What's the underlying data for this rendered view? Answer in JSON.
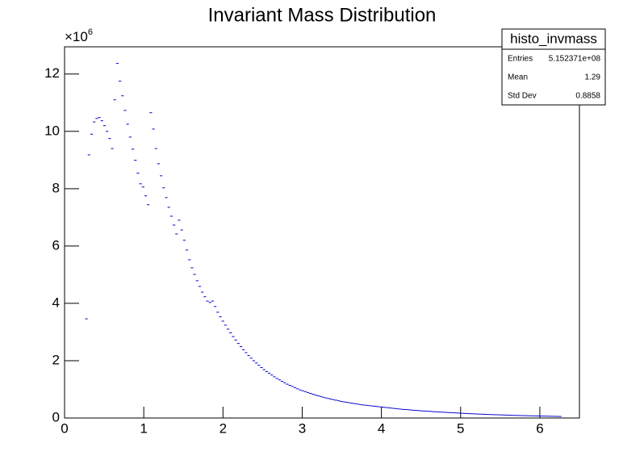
{
  "chart_data": {
    "type": "histogram-points",
    "title": "Invariant Mass Distribution",
    "y_multiplier": {
      "base": "×10",
      "exponent": "6"
    },
    "color": "#0000cc",
    "xlim": [
      0,
      6.5
    ],
    "ylim": [
      0,
      12.95
    ],
    "xticks": [
      0,
      1,
      2,
      3,
      4,
      5,
      6
    ],
    "yticks": [
      0,
      2,
      4,
      6,
      8,
      10,
      12
    ],
    "stats": {
      "title": "histo_invmass",
      "rows": [
        [
          "Entries",
          "5.152371e+08"
        ],
        [
          "Mean",
          "1.29"
        ],
        [
          "Std Dev",
          "0.8858"
        ]
      ]
    },
    "x": [
      0.27625,
      0.30875,
      0.34125,
      0.37375,
      0.40625,
      0.43875,
      0.47125,
      0.50375,
      0.53625,
      0.56875,
      0.60125,
      0.63375,
      0.66625,
      0.69875,
      0.73125,
      0.76375,
      0.79625,
      0.82875,
      0.86125,
      0.89375,
      0.92625,
      0.95875,
      0.99125,
      1.02375,
      1.05625,
      1.08875,
      1.12125,
      1.15375,
      1.18625,
      1.21875,
      1.25125,
      1.28375,
      1.31625,
      1.34875,
      1.38125,
      1.41375,
      1.44625,
      1.47875,
      1.51125,
      1.54375,
      1.57625,
      1.60875,
      1.64125,
      1.67375,
      1.70625,
      1.73875,
      1.77125,
      1.80375,
      1.83625,
      1.86875,
      1.90125,
      1.93375,
      1.96625,
      1.99875,
      2.03125,
      2.06375,
      2.09625,
      2.12875,
      2.16125,
      2.19375,
      2.22625,
      2.25875,
      2.29125,
      2.32375,
      2.35625,
      2.38875,
      2.42125,
      2.45375,
      2.48625,
      2.51875,
      2.55125,
      2.58375,
      2.61625,
      2.64875,
      2.68125,
      2.71375,
      2.74625,
      2.77875,
      2.81125,
      2.84375,
      2.87625,
      2.90875,
      2.94125,
      2.97375,
      3.00625,
      3.03875,
      3.07125,
      3.10375,
      3.13625,
      3.16875,
      3.20125,
      3.23375,
      3.26625,
      3.29875,
      3.33125,
      3.36375,
      3.39625,
      3.42875,
      3.46125,
      3.49375,
      3.52625,
      3.55875,
      3.59125,
      3.62375,
      3.65625,
      3.68875,
      3.72125,
      3.75375,
      3.78625,
      3.81875,
      3.85125,
      3.88375,
      3.91625,
      3.94875,
      3.98125,
      4.01375,
      4.04625,
      4.07875,
      4.11125,
      4.14375,
      4.17625,
      4.20875,
      4.24125,
      4.27375,
      4.30625,
      4.33875,
      4.37125,
      4.40375,
      4.43625,
      4.46875,
      4.50125,
      4.53375,
      4.56625,
      4.59875,
      4.63125,
      4.66375,
      4.69625,
      4.72875,
      4.76125,
      4.79375,
      4.82625,
      4.85875,
      4.89125,
      4.92375,
      4.95625,
      4.98875,
      5.02125,
      5.05375,
      5.08625,
      5.11875,
      5.15125,
      5.18375,
      5.21625,
      5.24875,
      5.28125,
      5.31375,
      5.34625,
      5.37875,
      5.41125,
      5.44375,
      5.47625,
      5.50875,
      5.54125,
      5.57375,
      5.60625,
      5.63875,
      5.67125,
      5.70375,
      5.73625,
      5.76875,
      5.80125,
      5.83375,
      5.86625,
      5.89875,
      5.93125,
      5.96375,
      5.99625,
      6.02875,
      6.06125,
      6.09375,
      6.12625,
      6.15875,
      6.19125,
      6.22375,
      6.25625
    ],
    "values": [
      3.46,
      9.18,
      9.9,
      10.33,
      10.45,
      10.48,
      10.37,
      10.2,
      10.0,
      9.75,
      9.4,
      11.1,
      12.37,
      11.75,
      11.24,
      10.73,
      10.25,
      9.8,
      9.38,
      8.99,
      8.54,
      8.17,
      8.06,
      7.75,
      7.44,
      10.65,
      10.08,
      9.4,
      8.87,
      8.45,
      8.03,
      7.69,
      7.35,
      7.04,
      6.73,
      6.42,
      6.9,
      6.56,
      6.2,
      5.86,
      5.52,
      5.24,
      5.01,
      4.79,
      4.59,
      4.39,
      4.23,
      4.08,
      4.03,
      4.08,
      3.89,
      3.69,
      3.53,
      3.38,
      3.24,
      3.1,
      2.97,
      2.84,
      2.72,
      2.6,
      2.49,
      2.38,
      2.28,
      2.18,
      2.09,
      2.0,
      1.92,
      1.84,
      1.76,
      1.69,
      1.62,
      1.56,
      1.5,
      1.44,
      1.38,
      1.33,
      1.28,
      1.23,
      1.18,
      1.14,
      1.1,
      1.06,
      1.02,
      0.98,
      0.95,
      0.92,
      0.89,
      0.86,
      0.83,
      0.8,
      0.775,
      0.75,
      0.725,
      0.7,
      0.68,
      0.66,
      0.64,
      0.62,
      0.6,
      0.58,
      0.565,
      0.55,
      0.535,
      0.52,
      0.505,
      0.49,
      0.475,
      0.46,
      0.45,
      0.44,
      0.43,
      0.42,
      0.41,
      0.4,
      0.39,
      0.38,
      0.37,
      0.36,
      0.35,
      0.34,
      0.33,
      0.32,
      0.31,
      0.3,
      0.295,
      0.29,
      0.28,
      0.27,
      0.265,
      0.26,
      0.25,
      0.245,
      0.24,
      0.235,
      0.23,
      0.22,
      0.215,
      0.21,
      0.205,
      0.2,
      0.195,
      0.19,
      0.185,
      0.18,
      0.175,
      0.17,
      0.165,
      0.16,
      0.155,
      0.15,
      0.147,
      0.143,
      0.139,
      0.135,
      0.131,
      0.127,
      0.124,
      0.12,
      0.117,
      0.114,
      0.111,
      0.108,
      0.105,
      0.102,
      0.099,
      0.096,
      0.093,
      0.09,
      0.088,
      0.085,
      0.083,
      0.08,
      0.078,
      0.076,
      0.074,
      0.072,
      0.07,
      0.068,
      0.066,
      0.064,
      0.062,
      0.06,
      0.058,
      0.056,
      0.054
    ]
  }
}
